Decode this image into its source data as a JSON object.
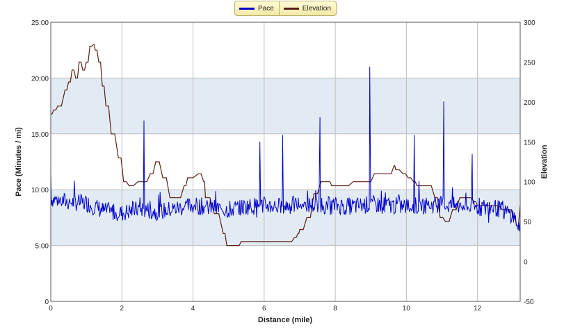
{
  "legend": {
    "pace_label": "Pace",
    "elevation_label": "Elevation",
    "pace_color": "#0000cc",
    "elevation_color": "#5c1f12"
  },
  "chart_data": {
    "type": "line",
    "title": "",
    "xlabel": "Distance (mile)",
    "ylabel_left": "Pace (Minutes / mi)",
    "ylabel_right": "Elevation",
    "x_range": [
      0,
      13.2
    ],
    "x_ticks": [
      "0",
      "2",
      "4",
      "6",
      "8",
      "10",
      "12"
    ],
    "y_left_ticks": [
      "0",
      "5:00",
      "10:00",
      "15:00",
      "20:00",
      "25:00"
    ],
    "y_left_range_minutes": [
      0,
      25
    ],
    "y_right_ticks": [
      "-50",
      "0",
      "50",
      "100",
      "150",
      "200",
      "250",
      "300"
    ],
    "y_right_range": [
      -50,
      300
    ],
    "shaded_bands_minutes": [
      [
        5,
        10
      ],
      [
        15,
        20
      ]
    ],
    "grid": true,
    "legend_position": "top-center",
    "series": [
      {
        "name": "Pace",
        "axis": "left",
        "unit": "minutes per mile",
        "color": "#0000cc",
        "base_x": [
          0,
          0.5,
          1.0,
          1.5,
          2.0,
          2.5,
          3.0,
          3.5,
          4.0,
          4.5,
          5.0,
          5.5,
          6.0,
          6.5,
          7.0,
          7.5,
          8.0,
          8.5,
          9.0,
          9.5,
          10.0,
          10.5,
          11.0,
          11.5,
          12.0,
          12.5,
          13.0,
          13.2
        ],
        "base_y": [
          9.2,
          8.9,
          8.8,
          8.1,
          7.9,
          8.3,
          8.0,
          8.3,
          8.6,
          8.4,
          8.2,
          8.5,
          8.6,
          8.5,
          8.7,
          8.6,
          8.6,
          8.5,
          8.7,
          8.6,
          8.5,
          8.6,
          8.7,
          8.5,
          8.4,
          8.4,
          7.7,
          6.4
        ],
        "spikes": [
          {
            "x": 0.0,
            "y": 11.5
          },
          {
            "x": 2.62,
            "y": 16.2
          },
          {
            "x": 5.88,
            "y": 14.3
          },
          {
            "x": 6.52,
            "y": 14.9
          },
          {
            "x": 7.57,
            "y": 16.5
          },
          {
            "x": 8.97,
            "y": 21.0
          },
          {
            "x": 10.22,
            "y": 14.9
          },
          {
            "x": 11.05,
            "y": 17.9
          },
          {
            "x": 11.85,
            "y": 13.2
          }
        ]
      },
      {
        "name": "Elevation",
        "axis": "right",
        "unit": "feet",
        "color": "#5c1f12",
        "x": [
          0,
          0.08,
          0.2,
          0.4,
          0.5,
          0.6,
          0.7,
          0.8,
          0.9,
          1.0,
          1.1,
          1.2,
          1.25,
          1.35,
          1.45,
          1.55,
          1.7,
          1.9,
          2.05,
          2.2,
          2.45,
          2.6,
          2.8,
          2.95,
          3.15,
          3.35,
          3.55,
          3.75,
          3.85,
          4.15,
          4.3,
          4.35,
          4.6,
          4.85,
          4.95,
          5.25,
          5.35,
          6.7,
          6.85,
          6.95,
          7.0,
          7.2,
          7.4,
          7.6,
          7.8,
          7.9,
          8.25,
          8.5,
          8.9,
          9.1,
          9.5,
          9.65,
          9.7,
          9.9,
          10.05,
          10.2,
          10.3,
          10.6,
          10.8,
          10.95,
          11.1,
          11.3,
          11.5,
          11.6,
          11.75,
          11.9,
          12.0,
          12.5,
          12.7,
          12.9,
          13.0,
          13.1,
          13.2
        ],
        "y": [
          185,
          190,
          195,
          215,
          225,
          240,
          230,
          250,
          240,
          250,
          270,
          272,
          265,
          250,
          220,
          195,
          160,
          130,
          100,
          95,
          100,
          100,
          110,
          125,
          105,
          80,
          80,
          95,
          105,
          110,
          100,
          80,
          60,
          35,
          20,
          20,
          25,
          25,
          30,
          35,
          40,
          55,
          85,
          100,
          100,
          95,
          95,
          100,
          100,
          110,
          110,
          120,
          115,
          110,
          105,
          100,
          95,
          95,
          80,
          55,
          50,
          65,
          80,
          80,
          80,
          75,
          70,
          70,
          65,
          65,
          55,
          45,
          70
        ]
      }
    ]
  }
}
